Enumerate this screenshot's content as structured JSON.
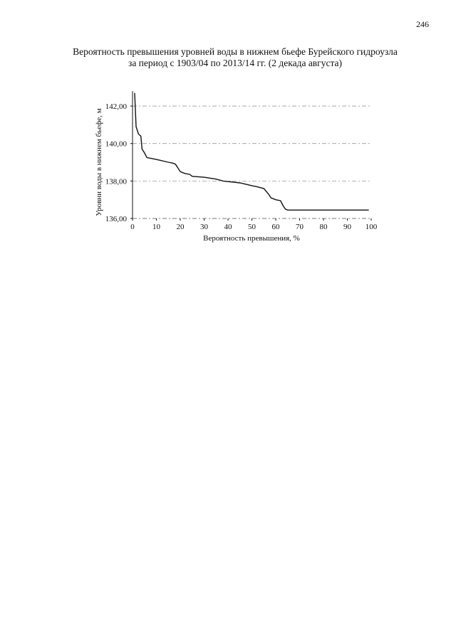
{
  "page_number": "246",
  "chart_data": {
    "type": "line",
    "title": [
      "Вероятность превышения уровней воды в нижнем бьефе Бурейского гидроузла",
      "за период с 1903/04 по 2013/14 гг. (2 декада августа)"
    ],
    "x_label": "Вероятность превышения, %",
    "y_label": "Уровни воды в нижнем бьефе, м",
    "x": [
      0.9,
      1.5,
      2.5,
      3.5,
      4,
      5,
      6,
      10,
      15,
      17,
      18,
      20,
      22,
      24,
      25,
      30,
      35,
      38,
      45,
      50,
      52,
      55,
      57,
      58,
      60,
      62,
      63,
      64,
      65,
      70,
      99
    ],
    "values": [
      142.7,
      140.9,
      140.5,
      140.4,
      139.7,
      139.5,
      139.25,
      139.15,
      139.0,
      138.95,
      138.9,
      138.5,
      138.4,
      138.35,
      138.25,
      138.2,
      138.1,
      138.0,
      137.9,
      137.75,
      137.7,
      137.6,
      137.3,
      137.1,
      137.0,
      136.95,
      136.7,
      136.5,
      136.45,
      136.45,
      136.45
    ],
    "color": "#111111",
    "xlim": [
      0,
      100
    ],
    "xticks": [
      0,
      10,
      20,
      30,
      40,
      50,
      60,
      70,
      80,
      90,
      100
    ],
    "ylim": [
      136,
      142.8
    ],
    "yticks": [
      {
        "value": 136,
        "label": "136,00"
      },
      {
        "value": 138,
        "label": "138,00"
      },
      {
        "value": 140,
        "label": "140,00"
      },
      {
        "value": 142,
        "label": "142,00"
      }
    ],
    "grid": true
  }
}
